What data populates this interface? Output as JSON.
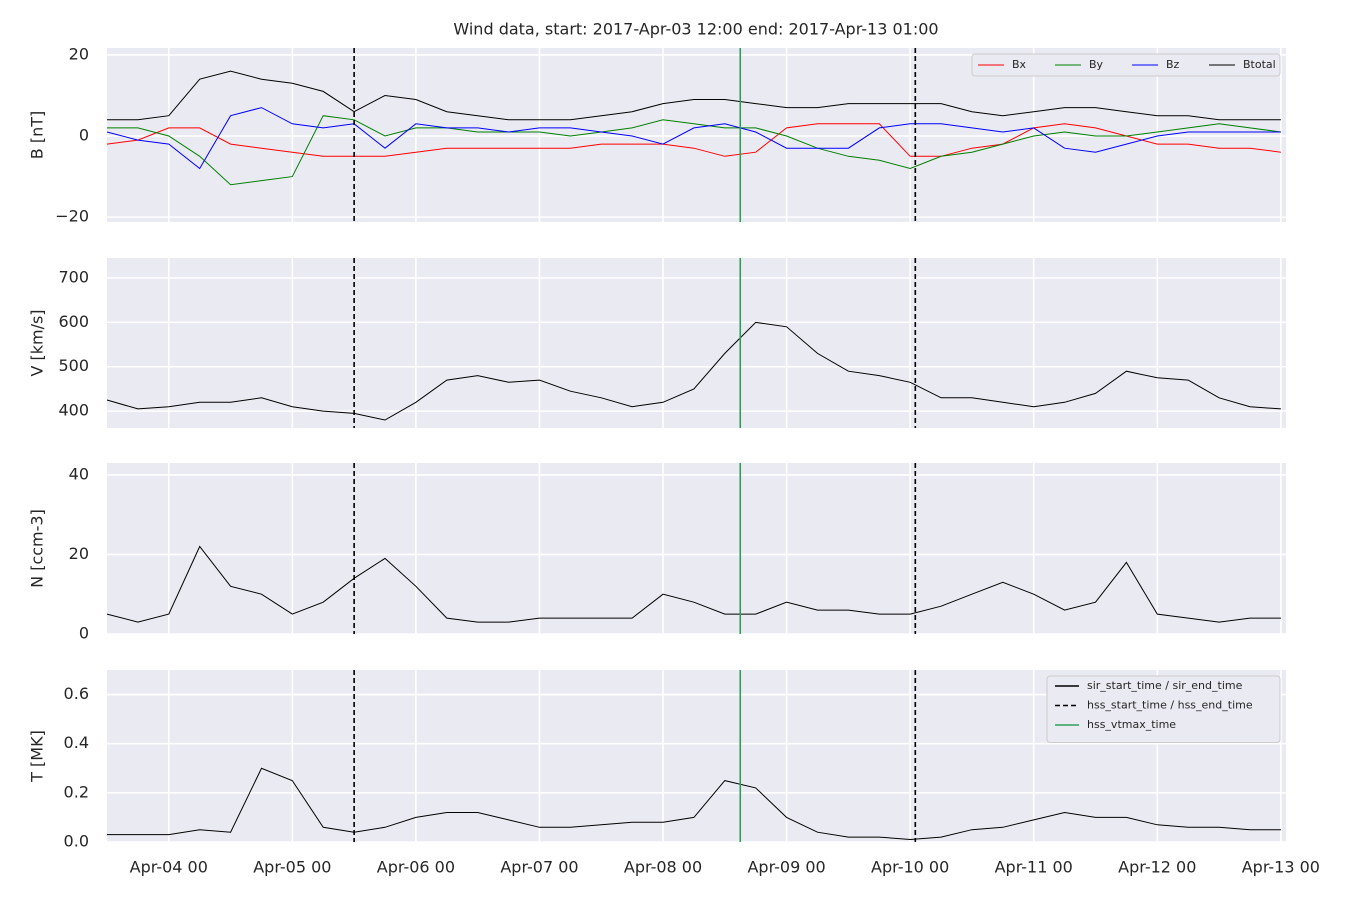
{
  "chart_data": [
    {
      "type": "line",
      "title": "Wind data, start: 2017-Apr-03 12:00  end: 2017-Apr-13 01:00",
      "ylabel": "B [nT]",
      "x": [
        "Apr-03 12",
        "Apr-03 18",
        "Apr-04 00",
        "Apr-04 06",
        "Apr-04 12",
        "Apr-04 18",
        "Apr-05 00",
        "Apr-05 06",
        "Apr-05 12",
        "Apr-05 18",
        "Apr-06 00",
        "Apr-06 06",
        "Apr-06 12",
        "Apr-06 18",
        "Apr-07 00",
        "Apr-07 06",
        "Apr-07 12",
        "Apr-07 18",
        "Apr-08 00",
        "Apr-08 06",
        "Apr-08 12",
        "Apr-08 18",
        "Apr-09 00",
        "Apr-09 06",
        "Apr-09 12",
        "Apr-09 18",
        "Apr-10 00",
        "Apr-10 06",
        "Apr-10 12",
        "Apr-10 18",
        "Apr-11 00",
        "Apr-11 06",
        "Apr-11 12",
        "Apr-11 18",
        "Apr-12 00",
        "Apr-12 06",
        "Apr-12 12",
        "Apr-12 18",
        "Apr-13 00"
      ],
      "series": [
        {
          "name": "Bx",
          "color": "#ff0000",
          "values": [
            -2,
            -1,
            2,
            2,
            -2,
            -3,
            -4,
            -5,
            -5,
            -5,
            -4,
            -3,
            -3,
            -3,
            -3,
            -3,
            -2,
            -2,
            -2,
            -3,
            -5,
            -4,
            2,
            3,
            3,
            3,
            -5,
            -5,
            -3,
            -2,
            2,
            3,
            2,
            0,
            -2,
            -2,
            -3,
            -3,
            -4
          ]
        },
        {
          "name": "By",
          "color": "#008000",
          "values": [
            2,
            2,
            0,
            -5,
            -12,
            -11,
            -10,
            5,
            4,
            0,
            2,
            2,
            1,
            1,
            1,
            0,
            1,
            2,
            4,
            3,
            2,
            2,
            0,
            -3,
            -5,
            -6,
            -8,
            -5,
            -4,
            -2,
            0,
            1,
            0,
            0,
            1,
            2,
            3,
            2,
            1
          ]
        },
        {
          "name": "Bz",
          "color": "#0000ff",
          "values": [
            1,
            -1,
            -2,
            -8,
            5,
            7,
            3,
            2,
            3,
            -3,
            3,
            2,
            2,
            1,
            2,
            2,
            1,
            0,
            -2,
            2,
            3,
            1,
            -3,
            -3,
            -3,
            2,
            3,
            3,
            2,
            1,
            2,
            -3,
            -4,
            -2,
            0,
            1,
            1,
            1,
            1
          ]
        },
        {
          "name": "Btotal",
          "color": "#000000",
          "values": [
            4,
            4,
            5,
            14,
            16,
            14,
            13,
            11,
            6,
            10,
            9,
            6,
            5,
            4,
            4,
            4,
            5,
            6,
            8,
            9,
            9,
            8,
            7,
            7,
            8,
            8,
            8,
            8,
            6,
            5,
            6,
            7,
            7,
            6,
            5,
            5,
            4,
            4,
            4
          ]
        }
      ],
      "ylim": [
        -21.2,
        21.7
      ],
      "yticks": [
        {
          "value": -20,
          "label": "−20"
        },
        0,
        20
      ],
      "grid": true,
      "legend": "upper right"
    },
    {
      "type": "line",
      "ylabel": "V [km/s]",
      "x": [
        "Apr-03 12",
        "Apr-03 18",
        "Apr-04 00",
        "Apr-04 06",
        "Apr-04 12",
        "Apr-04 18",
        "Apr-05 00",
        "Apr-05 06",
        "Apr-05 12",
        "Apr-05 18",
        "Apr-06 00",
        "Apr-06 06",
        "Apr-06 12",
        "Apr-06 18",
        "Apr-07 00",
        "Apr-07 06",
        "Apr-07 12",
        "Apr-07 18",
        "Apr-08 00",
        "Apr-08 06",
        "Apr-08 12",
        "Apr-08 18",
        "Apr-09 00",
        "Apr-09 06",
        "Apr-09 12",
        "Apr-09 18",
        "Apr-10 00",
        "Apr-10 06",
        "Apr-10 12",
        "Apr-10 18",
        "Apr-11 00",
        "Apr-11 06",
        "Apr-11 12",
        "Apr-11 18",
        "Apr-12 00",
        "Apr-12 06",
        "Apr-12 12",
        "Apr-12 18",
        "Apr-13 00"
      ],
      "series": [
        {
          "color": "#000000",
          "values": [
            425,
            405,
            410,
            420,
            420,
            430,
            410,
            400,
            395,
            380,
            420,
            470,
            480,
            465,
            470,
            445,
            430,
            410,
            420,
            450,
            530,
            600,
            590,
            530,
            490,
            480,
            465,
            430,
            430,
            420,
            410,
            420,
            440,
            490,
            475,
            470,
            430,
            410,
            405
          ]
        }
      ],
      "ylim": [
        362,
        745
      ],
      "yticks": [
        400,
        500,
        600,
        700
      ],
      "grid": true
    },
    {
      "type": "line",
      "ylabel": "N [ccm-3]",
      "x": [
        "Apr-03 12",
        "Apr-03 18",
        "Apr-04 00",
        "Apr-04 06",
        "Apr-04 12",
        "Apr-04 18",
        "Apr-05 00",
        "Apr-05 06",
        "Apr-05 12",
        "Apr-05 18",
        "Apr-06 00",
        "Apr-06 06",
        "Apr-06 12",
        "Apr-06 18",
        "Apr-07 00",
        "Apr-07 06",
        "Apr-07 12",
        "Apr-07 18",
        "Apr-08 00",
        "Apr-08 06",
        "Apr-08 12",
        "Apr-08 18",
        "Apr-09 00",
        "Apr-09 06",
        "Apr-09 12",
        "Apr-09 18",
        "Apr-10 00",
        "Apr-10 06",
        "Apr-10 12",
        "Apr-10 18",
        "Apr-11 00",
        "Apr-11 06",
        "Apr-11 12",
        "Apr-11 18",
        "Apr-12 00",
        "Apr-12 06",
        "Apr-12 12",
        "Apr-12 18",
        "Apr-13 00"
      ],
      "series": [
        {
          "color": "#000000",
          "values": [
            5,
            3,
            5,
            22,
            12,
            10,
            5,
            8,
            14,
            19,
            12,
            4,
            3,
            3,
            4,
            4,
            4,
            4,
            10,
            8,
            5,
            5,
            8,
            6,
            6,
            5,
            5,
            7,
            10,
            13,
            10,
            6,
            8,
            18,
            5,
            4,
            3,
            4,
            4
          ]
        }
      ],
      "ylim": [
        0,
        43
      ],
      "yticks": [
        0,
        20,
        40
      ],
      "grid": true
    },
    {
      "type": "line",
      "ylabel": "T [MK]",
      "x": [
        "Apr-03 12",
        "Apr-03 18",
        "Apr-04 00",
        "Apr-04 06",
        "Apr-04 12",
        "Apr-04 18",
        "Apr-05 00",
        "Apr-05 06",
        "Apr-05 12",
        "Apr-05 18",
        "Apr-06 00",
        "Apr-06 06",
        "Apr-06 12",
        "Apr-06 18",
        "Apr-07 00",
        "Apr-07 06",
        "Apr-07 12",
        "Apr-07 18",
        "Apr-08 00",
        "Apr-08 06",
        "Apr-08 12",
        "Apr-08 18",
        "Apr-09 00",
        "Apr-09 06",
        "Apr-09 12",
        "Apr-09 18",
        "Apr-10 00",
        "Apr-10 06",
        "Apr-10 12",
        "Apr-10 18",
        "Apr-11 00",
        "Apr-11 06",
        "Apr-11 12",
        "Apr-11 18",
        "Apr-12 00",
        "Apr-12 06",
        "Apr-12 12",
        "Apr-12 18",
        "Apr-13 00"
      ],
      "series": [
        {
          "color": "#000000",
          "values": [
            0.03,
            0.03,
            0.03,
            0.05,
            0.04,
            0.3,
            0.25,
            0.06,
            0.04,
            0.06,
            0.1,
            0.12,
            0.12,
            0.09,
            0.06,
            0.06,
            0.07,
            0.08,
            0.08,
            0.1,
            0.25,
            0.22,
            0.1,
            0.04,
            0.02,
            0.02,
            0.01,
            0.02,
            0.05,
            0.06,
            0.09,
            0.12,
            0.1,
            0.1,
            0.07,
            0.06,
            0.06,
            0.05,
            0.05
          ]
        }
      ],
      "ylim": [
        0,
        0.7
      ],
      "yticks": [
        {
          "value": 0,
          "label": "0.0"
        },
        0.2,
        0.4,
        0.6
      ],
      "grid": true,
      "legend": "upper right",
      "xlim": [
        "Apr-03 12",
        "Apr-13 01"
      ],
      "xticks": [
        "Apr-04 00",
        "Apr-05 00",
        "Apr-06 00",
        "Apr-07 00",
        "Apr-08 00",
        "Apr-09 00",
        "Apr-10 00",
        "Apr-11 00",
        "Apr-12 00",
        "Apr-13 00"
      ],
      "events": [
        {
          "name": "sir_start_time / sir_end_time",
          "color": "#000000",
          "style": "solid",
          "x": []
        },
        {
          "name": "hss_start_time / hss_end_time",
          "color": "#000000",
          "style": "dashed",
          "x": [
            "Apr-05 12",
            "Apr-10 01"
          ]
        },
        {
          "name": "hss_vtmax_time",
          "color": "#2ca05a",
          "style": "solid",
          "x": [
            "Apr-08 15"
          ]
        }
      ]
    }
  ]
}
